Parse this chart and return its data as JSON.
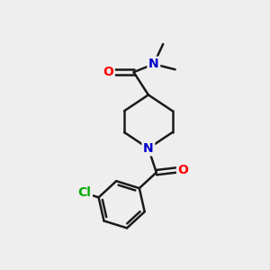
{
  "background_color": "#eeeeee",
  "bond_color": "#1a1a1a",
  "atom_colors": {
    "O": "#ff0000",
    "N": "#0000cc",
    "Cl": "#00aa00",
    "C": "#1a1a1a"
  },
  "figsize": [
    3.0,
    3.0
  ],
  "dpi": 100
}
